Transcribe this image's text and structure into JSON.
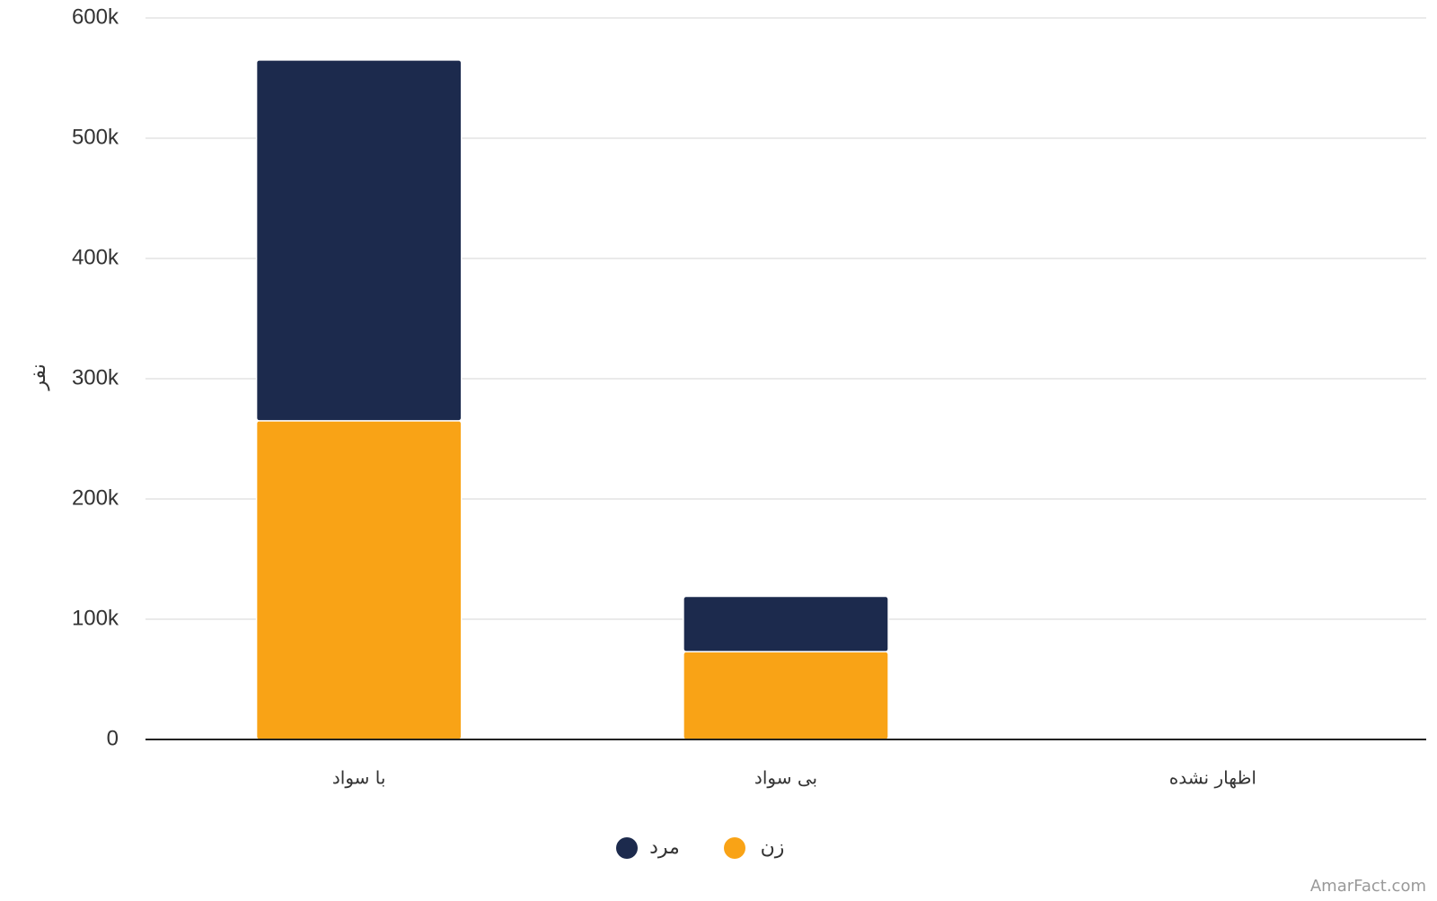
{
  "chart_data": {
    "type": "stacked_bar",
    "y_label": "نفر",
    "credit": "AmarFact.com",
    "categories": [
      "با سواد",
      "بی سواد",
      "اظهار نشده"
    ],
    "series": [
      {
        "name": "زن",
        "color": "#f9a316",
        "values": [
          265000,
          73000,
          0
        ]
      },
      {
        "name": "مرد",
        "color": "#1c2a4d",
        "values": [
          300000,
          46000,
          0
        ]
      }
    ],
    "ylim": [
      0,
      600000
    ],
    "yticks": [
      0,
      {
        "value": 100000,
        "label": "100k"
      },
      {
        "value": 200000,
        "label": "200k"
      },
      {
        "value": 300000,
        "label": "300k"
      },
      {
        "value": 400000,
        "label": "400k"
      },
      {
        "value": 500000,
        "label": "500k"
      },
      {
        "value": 600000,
        "label": "600k"
      }
    ],
    "grid": true
  }
}
